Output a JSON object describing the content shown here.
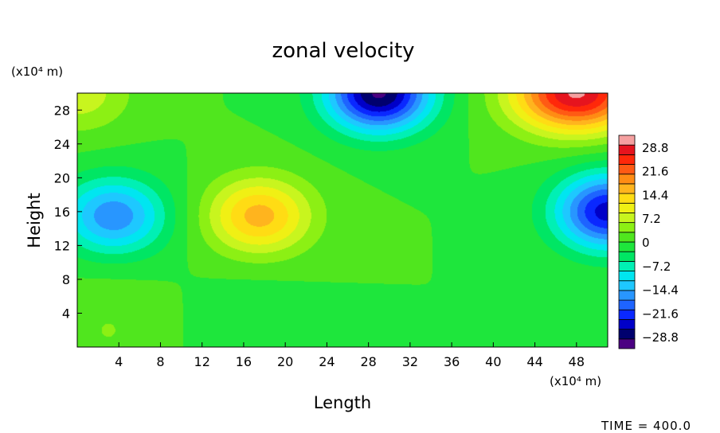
{
  "chart_data": {
    "type": "heatmap",
    "title": "zonal velocity",
    "xlabel": "Length",
    "ylabel": "Height",
    "x_unit": "(x10⁴ m)",
    "y_unit": "(x10⁴ m)",
    "xlim": [
      0,
      51
    ],
    "ylim": [
      0,
      30
    ],
    "x_ticks": [
      "4",
      "8",
      "12",
      "16",
      "20",
      "24",
      "28",
      "32",
      "36",
      "40",
      "44",
      "48"
    ],
    "y_ticks": [
      "4",
      "8",
      "12",
      "16",
      "20",
      "24",
      "28"
    ],
    "colorbar": {
      "min": -32.4,
      "max": 32.4,
      "labels": [
        "28.8",
        "21.6",
        "14.4",
        "7.2",
        "0",
        "−7.2",
        "−14.4",
        "−21.6",
        "−28.8"
      ]
    },
    "features": [
      {
        "type": "min",
        "x": 3.5,
        "y": 15.5,
        "value": -17
      },
      {
        "type": "max",
        "x": 17.5,
        "y": 15.5,
        "value": 16
      },
      {
        "type": "min",
        "x": 29,
        "y": 30,
        "value": -30
      },
      {
        "type": "max",
        "x": 48,
        "y": 30,
        "value": 30
      },
      {
        "type": "min",
        "x": 51,
        "y": 16,
        "value": -25
      },
      {
        "type": "max",
        "x": 0,
        "y": 30,
        "value": 8
      }
    ],
    "footer": "TIME = 400.0"
  }
}
